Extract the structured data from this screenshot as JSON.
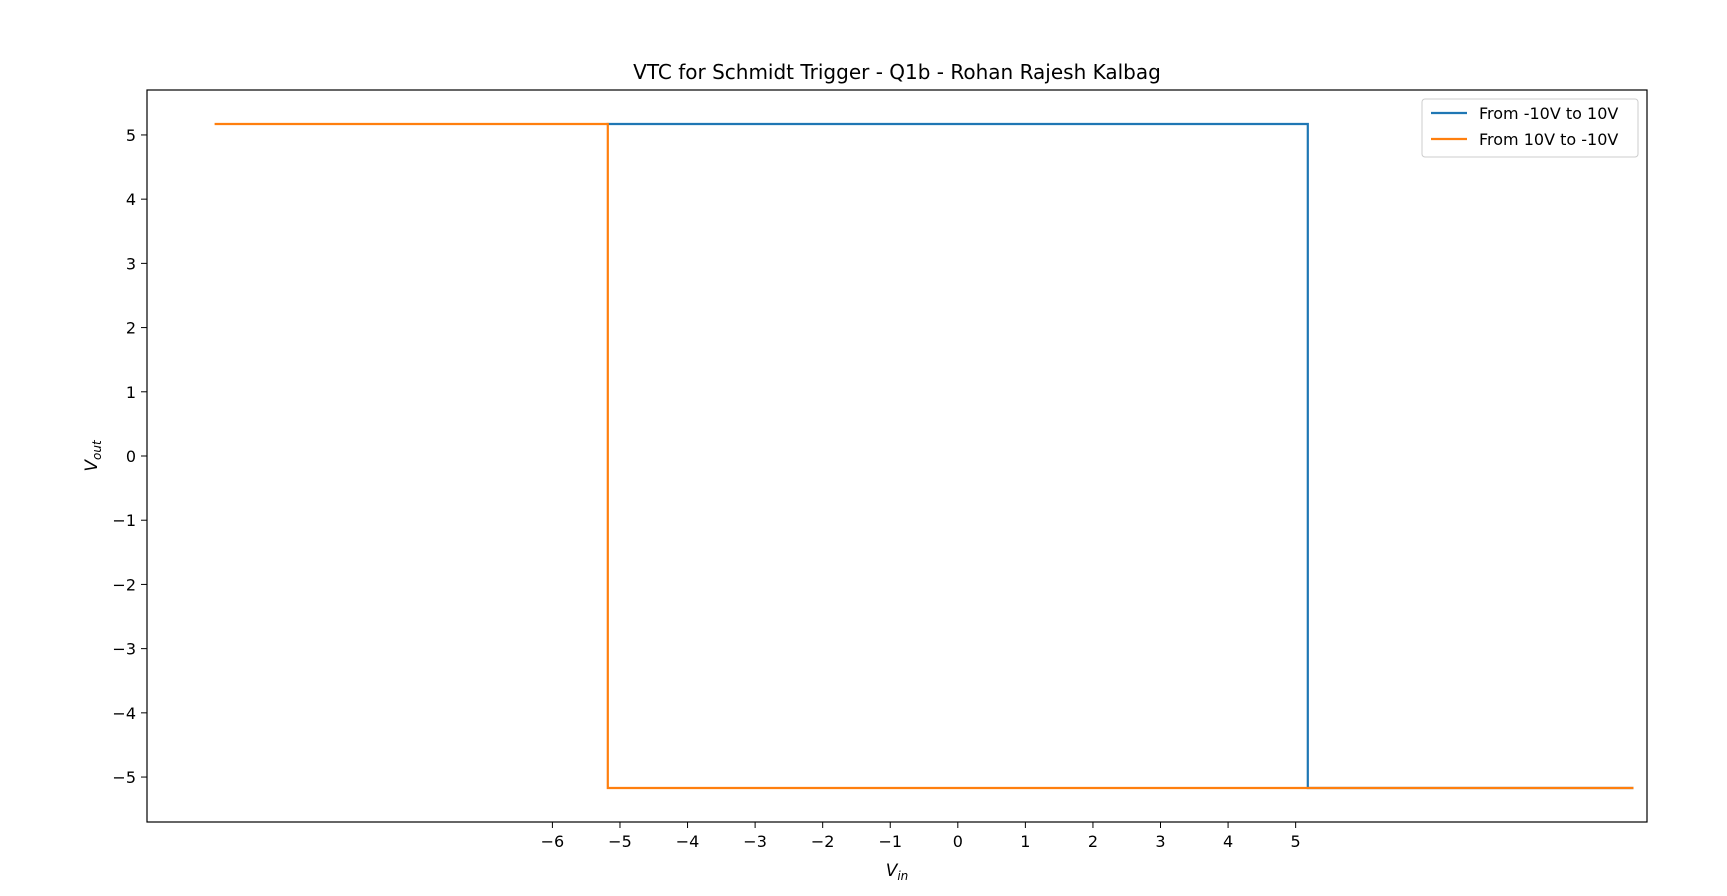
{
  "chart_data": {
    "type": "line",
    "title": "VTC for Schmidt Trigger - Q1b - Rohan Rajesh Kalbag",
    "xlabel": {
      "main": "V",
      "sub": "in"
    },
    "ylabel": {
      "main": "V",
      "sub": "out"
    },
    "xlim": [
      -12.0,
      10.2
    ],
    "ylim": [
      -5.7,
      5.7
    ],
    "xticks": [
      -6,
      -5,
      -4,
      -3,
      -2,
      -1,
      0,
      1,
      2,
      3,
      4,
      5
    ],
    "yticks": [
      5,
      4,
      3,
      2,
      1,
      0,
      -1,
      -2,
      -3,
      -4,
      -5
    ],
    "grid": false,
    "legend_position": "top-right",
    "series": [
      {
        "name": "From -10V to 10V",
        "color": "#1f77b4",
        "points": [
          [
            -5.2,
            5.17
          ],
          [
            5.18,
            5.17
          ],
          [
            5.18,
            -5.17
          ],
          [
            10.0,
            -5.17
          ]
        ]
      },
      {
        "name": "From 10V to -10V",
        "color": "#ff7f0e",
        "points": [
          [
            10.0,
            -5.17
          ],
          [
            -5.18,
            -5.17
          ],
          [
            -5.18,
            5.17
          ],
          [
            -11.0,
            5.17
          ]
        ]
      }
    ]
  }
}
